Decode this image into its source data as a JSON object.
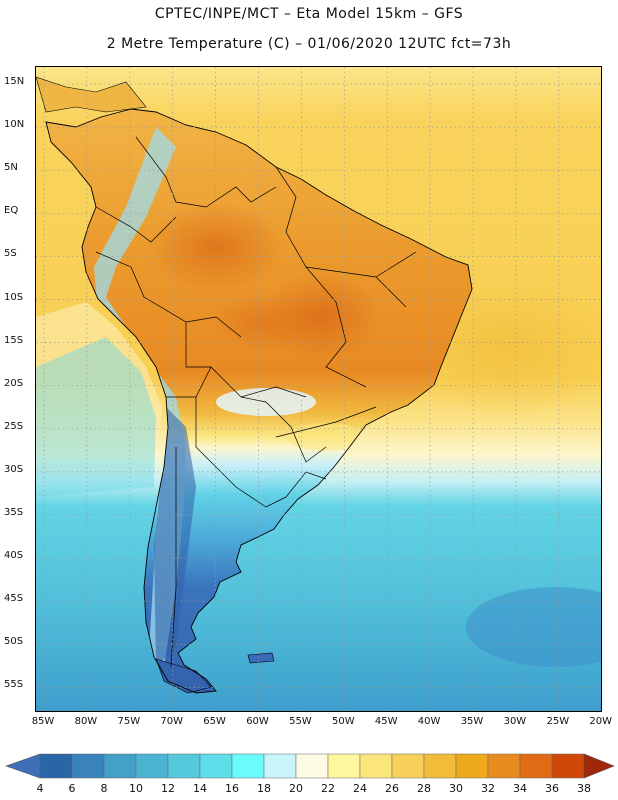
{
  "title_line1": "CPTEC/INPE/MCT –  Eta Model 15km – GFS",
  "title_line2": "2 Metre Temperature (C) – 01/06/2020 12UTC fct=73h",
  "lat_labels": [
    "15N",
    "10N",
    "5N",
    "EQ",
    "5S",
    "10S",
    "15S",
    "20S",
    "25S",
    "30S",
    "35S",
    "40S",
    "45S",
    "50S",
    "55S"
  ],
  "lon_labels": [
    "85W",
    "80W",
    "75W",
    "70W",
    "65W",
    "60W",
    "55W",
    "50W",
    "45W",
    "40W",
    "35W",
    "30W",
    "25W",
    "20W"
  ],
  "colorbar": {
    "labels": [
      "4",
      "6",
      "8",
      "10",
      "12",
      "14",
      "16",
      "18",
      "20",
      "22",
      "24",
      "26",
      "28",
      "30",
      "32",
      "34",
      "36",
      "38"
    ],
    "colors": [
      "#2866a8",
      "#3a82bc",
      "#42a0c9",
      "#4ab4d2",
      "#55c8dc",
      "#5fdde8",
      "#6afcfc",
      "#c8f4fc",
      "#fefbe4",
      "#fef7a0",
      "#fbe67c",
      "#f6d05a",
      "#f1bc3a",
      "#eea81c",
      "#e88c20",
      "#e06c16",
      "#d04808",
      "#b02c04"
    ],
    "under_color": "#3f6fb8",
    "over_color": "#a02808"
  },
  "map_colors": {
    "ocean_warm": "#f9d35c",
    "ocean_warm_edge": "#fbe68a",
    "ocean_mild": "#fdf6cc",
    "ocean_cool": "#5ecbdf",
    "ocean_cold": "#48b6d4",
    "ocean_colder": "#3f9fd0",
    "land_hot": "#eb9a2c",
    "land_hotter": "#e07a20",
    "land_cold": "#3a6ab8",
    "land_cool": "#56bde0",
    "andes": "#a8e0ee",
    "border": "#000000",
    "grid": "#9a9a9a"
  }
}
